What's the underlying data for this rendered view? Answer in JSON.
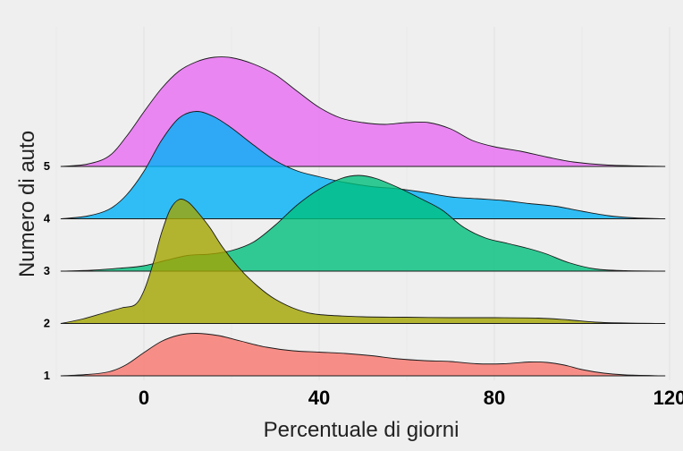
{
  "chart_data": {
    "type": "ridgeline",
    "xlabel": "Percentuale di giorni",
    "ylabel": "Numero di auto",
    "xlim": [
      -20,
      120
    ],
    "x_ticks": [
      0,
      40,
      80,
      120
    ],
    "x_tick_labels": [
      "0",
      "40",
      "80",
      "120"
    ],
    "categories": [
      "1",
      "2",
      "3",
      "4",
      "5"
    ],
    "grid": "vertical minor lines, light",
    "legend": "none",
    "series": [
      {
        "category": "1",
        "color": "#F8766D",
        "density": [
          {
            "x": -19,
            "y": 0.0
          },
          {
            "x": -13,
            "y": 0.03
          },
          {
            "x": -8,
            "y": 0.09
          },
          {
            "x": -4,
            "y": 0.25
          },
          {
            "x": 0,
            "y": 0.52
          },
          {
            "x": 4,
            "y": 0.77
          },
          {
            "x": 8,
            "y": 0.91
          },
          {
            "x": 12,
            "y": 0.95
          },
          {
            "x": 17,
            "y": 0.9
          },
          {
            "x": 22,
            "y": 0.78
          },
          {
            "x": 28,
            "y": 0.64
          },
          {
            "x": 34,
            "y": 0.56
          },
          {
            "x": 40,
            "y": 0.53
          },
          {
            "x": 46,
            "y": 0.5
          },
          {
            "x": 52,
            "y": 0.45
          },
          {
            "x": 58,
            "y": 0.38
          },
          {
            "x": 64,
            "y": 0.34
          },
          {
            "x": 70,
            "y": 0.32
          },
          {
            "x": 76,
            "y": 0.27
          },
          {
            "x": 82,
            "y": 0.27
          },
          {
            "x": 88,
            "y": 0.31
          },
          {
            "x": 92,
            "y": 0.3
          },
          {
            "x": 96,
            "y": 0.24
          },
          {
            "x": 100,
            "y": 0.14
          },
          {
            "x": 105,
            "y": 0.06
          },
          {
            "x": 110,
            "y": 0.02
          },
          {
            "x": 119,
            "y": 0.0
          }
        ]
      },
      {
        "category": "2",
        "color": "#A3A500",
        "density": [
          {
            "x": -19,
            "y": 0.0
          },
          {
            "x": -14,
            "y": 0.1
          },
          {
            "x": -9,
            "y": 0.24
          },
          {
            "x": -5,
            "y": 0.35
          },
          {
            "x": -2,
            "y": 0.42
          },
          {
            "x": 0,
            "y": 0.73
          },
          {
            "x": 2,
            "y": 1.31
          },
          {
            "x": 4,
            "y": 2.02
          },
          {
            "x": 6,
            "y": 2.55
          },
          {
            "x": 8,
            "y": 2.77
          },
          {
            "x": 10,
            "y": 2.72
          },
          {
            "x": 12,
            "y": 2.52
          },
          {
            "x": 15,
            "y": 2.15
          },
          {
            "x": 18,
            "y": 1.7
          },
          {
            "x": 22,
            "y": 1.21
          },
          {
            "x": 26,
            "y": 0.83
          },
          {
            "x": 30,
            "y": 0.54
          },
          {
            "x": 35,
            "y": 0.31
          },
          {
            "x": 40,
            "y": 0.2
          },
          {
            "x": 50,
            "y": 0.15
          },
          {
            "x": 60,
            "y": 0.14
          },
          {
            "x": 70,
            "y": 0.13
          },
          {
            "x": 80,
            "y": 0.13
          },
          {
            "x": 90,
            "y": 0.12
          },
          {
            "x": 97,
            "y": 0.08
          },
          {
            "x": 103,
            "y": 0.03
          },
          {
            "x": 110,
            "y": 0.01
          },
          {
            "x": 119,
            "y": 0.0
          }
        ]
      },
      {
        "category": "3",
        "color": "#00BF7D",
        "density": [
          {
            "x": -19,
            "y": 0.0
          },
          {
            "x": -12,
            "y": 0.02
          },
          {
            "x": -5,
            "y": 0.07
          },
          {
            "x": 0,
            "y": 0.12
          },
          {
            "x": 5,
            "y": 0.24
          },
          {
            "x": 10,
            "y": 0.35
          },
          {
            "x": 15,
            "y": 0.38
          },
          {
            "x": 20,
            "y": 0.46
          },
          {
            "x": 25,
            "y": 0.65
          },
          {
            "x": 30,
            "y": 1.03
          },
          {
            "x": 35,
            "y": 1.48
          },
          {
            "x": 40,
            "y": 1.83
          },
          {
            "x": 45,
            "y": 2.07
          },
          {
            "x": 49,
            "y": 2.14
          },
          {
            "x": 53,
            "y": 2.07
          },
          {
            "x": 58,
            "y": 1.87
          },
          {
            "x": 63,
            "y": 1.63
          },
          {
            "x": 68,
            "y": 1.37
          },
          {
            "x": 73,
            "y": 0.98
          },
          {
            "x": 78,
            "y": 0.74
          },
          {
            "x": 83,
            "y": 0.62
          },
          {
            "x": 88,
            "y": 0.5
          },
          {
            "x": 92,
            "y": 0.38
          },
          {
            "x": 97,
            "y": 0.19
          },
          {
            "x": 103,
            "y": 0.05
          },
          {
            "x": 110,
            "y": 0.01
          },
          {
            "x": 119,
            "y": 0.0
          }
        ]
      },
      {
        "category": "4",
        "color": "#00B0F6",
        "density": [
          {
            "x": -19,
            "y": 0.0
          },
          {
            "x": -13,
            "y": 0.06
          },
          {
            "x": -8,
            "y": 0.21
          },
          {
            "x": -4,
            "y": 0.53
          },
          {
            "x": 0,
            "y": 1.06
          },
          {
            "x": 4,
            "y": 1.75
          },
          {
            "x": 8,
            "y": 2.25
          },
          {
            "x": 12,
            "y": 2.4
          },
          {
            "x": 16,
            "y": 2.28
          },
          {
            "x": 20,
            "y": 2.03
          },
          {
            "x": 25,
            "y": 1.65
          },
          {
            "x": 30,
            "y": 1.3
          },
          {
            "x": 35,
            "y": 1.07
          },
          {
            "x": 40,
            "y": 0.94
          },
          {
            "x": 46,
            "y": 0.81
          },
          {
            "x": 52,
            "y": 0.72
          },
          {
            "x": 58,
            "y": 0.67
          },
          {
            "x": 64,
            "y": 0.59
          },
          {
            "x": 70,
            "y": 0.49
          },
          {
            "x": 76,
            "y": 0.45
          },
          {
            "x": 82,
            "y": 0.41
          },
          {
            "x": 88,
            "y": 0.34
          },
          {
            "x": 94,
            "y": 0.28
          },
          {
            "x": 100,
            "y": 0.17
          },
          {
            "x": 106,
            "y": 0.07
          },
          {
            "x": 112,
            "y": 0.02
          },
          {
            "x": 119,
            "y": 0.0
          }
        ]
      },
      {
        "category": "5",
        "color": "#E76BF3",
        "density": [
          {
            "x": -19,
            "y": 0.0
          },
          {
            "x": -13,
            "y": 0.05
          },
          {
            "x": -8,
            "y": 0.23
          },
          {
            "x": -4,
            "y": 0.67
          },
          {
            "x": 0,
            "y": 1.22
          },
          {
            "x": 4,
            "y": 1.74
          },
          {
            "x": 8,
            "y": 2.13
          },
          {
            "x": 12,
            "y": 2.34
          },
          {
            "x": 16,
            "y": 2.44
          },
          {
            "x": 20,
            "y": 2.43
          },
          {
            "x": 25,
            "y": 2.29
          },
          {
            "x": 30,
            "y": 2.05
          },
          {
            "x": 35,
            "y": 1.68
          },
          {
            "x": 40,
            "y": 1.32
          },
          {
            "x": 45,
            "y": 1.08
          },
          {
            "x": 50,
            "y": 0.98
          },
          {
            "x": 55,
            "y": 0.94
          },
          {
            "x": 60,
            "y": 0.98
          },
          {
            "x": 65,
            "y": 0.98
          },
          {
            "x": 70,
            "y": 0.84
          },
          {
            "x": 75,
            "y": 0.58
          },
          {
            "x": 80,
            "y": 0.44
          },
          {
            "x": 86,
            "y": 0.34
          },
          {
            "x": 92,
            "y": 0.21
          },
          {
            "x": 98,
            "y": 0.1
          },
          {
            "x": 106,
            "y": 0.03
          },
          {
            "x": 119,
            "y": 0.0
          }
        ]
      }
    ]
  }
}
